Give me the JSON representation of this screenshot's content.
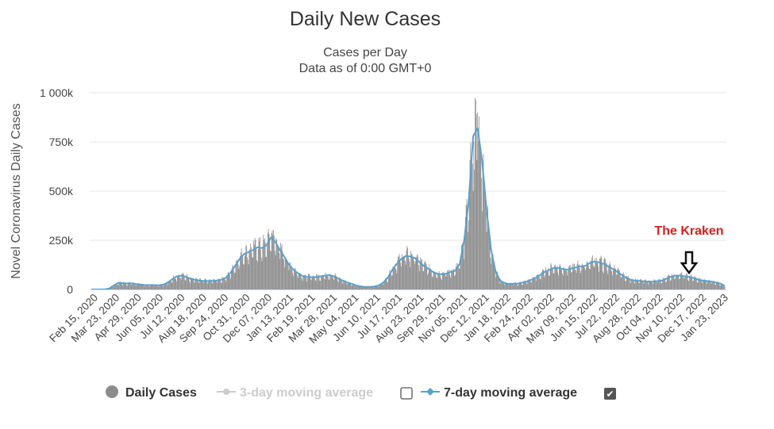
{
  "chart_data": {
    "type": "bar",
    "title": "Daily New Cases",
    "subtitle_lines": [
      "Cases per Day",
      "Data as of 0:00 GMT+0"
    ],
    "ylabel": "Novel Coronavirus Daily Cases",
    "ylim": [
      0,
      1000000
    ],
    "y_ticks": [
      {
        "value": 0,
        "label": "0"
      },
      {
        "value": 250000,
        "label": "250k"
      },
      {
        "value": 500000,
        "label": "500k"
      },
      {
        "value": 750000,
        "label": "750k"
      },
      {
        "value": 1000000,
        "label": "1 000k"
      }
    ],
    "x_tick_labels": [
      "Feb 15, 2020",
      "Mar 23, 2020",
      "Apr 29, 2020",
      "Jun 05, 2020",
      "Jul 12, 2020",
      "Aug 18, 2020",
      "Sep 24, 2020",
      "Oct 31, 2020",
      "Dec 07, 2020",
      "Jan 13, 2021",
      "Feb 19, 2021",
      "Mar 28, 2021",
      "May 04, 2021",
      "Jun 10, 2021",
      "Jul 17, 2021",
      "Aug 23, 2021",
      "Sep 29, 2021",
      "Nov 05, 2021",
      "Dec 12, 2021",
      "Jan 18, 2022",
      "Feb 24, 2022",
      "Apr 02, 2022",
      "May 09, 2022",
      "Jun 15, 2022",
      "Jul 22, 2022",
      "Aug 28, 2022",
      "Oct 04, 2022",
      "Nov 10, 2022",
      "Dec 17, 2022",
      "Jan 23, 2023"
    ],
    "seven_day_avg_weekly": [
      0,
      0,
      0,
      500,
      5000,
      20000,
      33000,
      32000,
      30000,
      31000,
      27000,
      25000,
      22000,
      22000,
      22000,
      21000,
      24000,
      35000,
      52000,
      66000,
      70000,
      65000,
      55000,
      49000,
      45000,
      43000,
      43000,
      43000,
      46000,
      50000,
      60000,
      85000,
      120000,
      155000,
      180000,
      190000,
      200000,
      215000,
      210000,
      225000,
      265000,
      240000,
      200000,
      165000,
      125000,
      100000,
      82000,
      68000,
      63000,
      62000,
      63000,
      66000,
      70000,
      73000,
      67000,
      55000,
      45000,
      35000,
      28000,
      20000,
      15000,
      13000,
      13000,
      15000,
      20000,
      35000,
      60000,
      100000,
      130000,
      155000,
      170000,
      168000,
      160000,
      140000,
      120000,
      105000,
      90000,
      80000,
      77000,
      80000,
      90000,
      95000,
      130000,
      250000,
      450000,
      780000,
      820000,
      650000,
      400000,
      200000,
      90000,
      45000,
      32000,
      28000,
      28000,
      30000,
      35000,
      40000,
      50000,
      60000,
      75000,
      90000,
      100000,
      110000,
      108000,
      104000,
      100000,
      108000,
      112000,
      118000,
      120000,
      135000,
      142000,
      138000,
      130000,
      118000,
      105000,
      90000,
      75000,
      60000,
      50000,
      45000,
      43000,
      41000,
      40000,
      40000,
      42000,
      45000,
      55000,
      65000,
      70000,
      70000,
      67000,
      64000,
      58000,
      50000,
      45000,
      43000,
      40000,
      35000,
      30000,
      18000
    ],
    "annotation": "The Kraken",
    "annotation_date": "Dec 31, 2022",
    "series": [
      {
        "name": "Daily Cases",
        "color": "#8c8c8c",
        "enabled": true
      },
      {
        "name": "3-day moving average",
        "color": "#c8c8c8",
        "enabled": false
      },
      {
        "name": "7-day moving average",
        "color": "#5aa0cc",
        "enabled": true
      }
    ]
  },
  "legend": {
    "daily_cases": "Daily Cases",
    "three_day": "3-day moving average",
    "seven_day": "7-day moving average",
    "checkbox_checked_glyph": "✔"
  },
  "colors": {
    "bar": "#8c8c8c",
    "line": "#5aa0cc",
    "grid": "#e6e6e6",
    "annotation": "#d62020"
  }
}
